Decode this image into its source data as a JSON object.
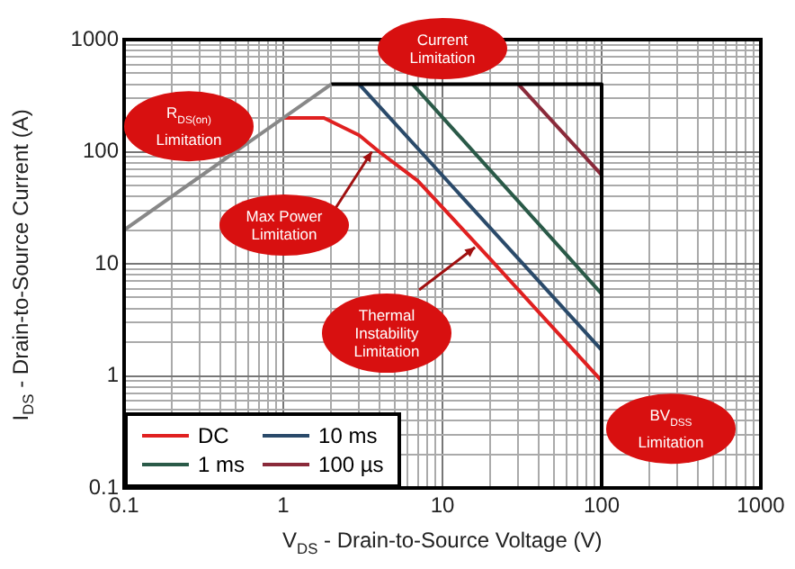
{
  "chart_data": {
    "type": "line",
    "xlabel": "V$_{DS}$ - Drain-to-Source Voltage (V)",
    "ylabel": "I$_{DS}$ - Drain-to-Source Current (A)",
    "log": "xy",
    "grid": true,
    "legend": "bottom left",
    "marker": "none",
    "line_style": "solid",
    "xlim": [
      0.1,
      1000
    ],
    "ylim": [
      0.1,
      1000
    ],
    "xticks": [
      0.1,
      {
        "value": 0.2,
        "label": null
      },
      {
        "value": 0.3,
        "label": null
      },
      {
        "value": 0.4,
        "label": null
      },
      {
        "value": 0.5,
        "label": null
      },
      {
        "value": 0.6,
        "label": null
      },
      {
        "value": 0.7,
        "label": null
      },
      {
        "value": 0.8,
        "label": null
      },
      {
        "value": 0.9,
        "label": null
      },
      1,
      {
        "value": 2,
        "label": null
      },
      {
        "value": 3,
        "label": null
      },
      {
        "value": 4,
        "label": null
      },
      {
        "value": 5,
        "label": null
      },
      {
        "value": 6,
        "label": null
      },
      {
        "value": 7,
        "label": null
      },
      {
        "value": 8,
        "label": null
      },
      {
        "value": 9,
        "label": null
      },
      10,
      {
        "value": 20,
        "label": null
      },
      {
        "value": 30,
        "label": null
      },
      {
        "value": 40,
        "label": null
      },
      {
        "value": 50,
        "label": null
      },
      {
        "value": 60,
        "label": null
      },
      {
        "value": 70,
        "label": null
      },
      {
        "value": 80,
        "label": null
      },
      {
        "value": 90,
        "label": null
      },
      100,
      {
        "value": 200,
        "label": null
      },
      {
        "value": 300,
        "label": null
      },
      {
        "value": 400,
        "label": null
      },
      {
        "value": 500,
        "label": null
      },
      {
        "value": 600,
        "label": null
      },
      {
        "value": 700,
        "label": null
      },
      {
        "value": 800,
        "label": null
      },
      {
        "value": 900,
        "label": null
      },
      1000
    ],
    "yticks": [
      0.1,
      {
        "value": 0.2,
        "label": null
      },
      {
        "value": 0.3,
        "label": null
      },
      {
        "value": 0.4,
        "label": null
      },
      {
        "value": 0.5,
        "label": null
      },
      {
        "value": 0.6,
        "label": null
      },
      {
        "value": 0.7,
        "label": null
      },
      {
        "value": 0.8,
        "label": null
      },
      {
        "value": 0.9,
        "label": null
      },
      1,
      {
        "value": 2,
        "label": null
      },
      {
        "value": 3,
        "label": null
      },
      {
        "value": 4,
        "label": null
      },
      {
        "value": 5,
        "label": null
      },
      {
        "value": 6,
        "label": null
      },
      {
        "value": 7,
        "label": null
      },
      {
        "value": 8,
        "label": null
      },
      {
        "value": 9,
        "label": null
      },
      10,
      {
        "value": 20,
        "label": null
      },
      {
        "value": 30,
        "label": null
      },
      {
        "value": 40,
        "label": null
      },
      {
        "value": 50,
        "label": null
      },
      {
        "value": 60,
        "label": null
      },
      {
        "value": 70,
        "label": null
      },
      {
        "value": 80,
        "label": null
      },
      {
        "value": 90,
        "label": null
      },
      100,
      {
        "value": 200,
        "label": null
      },
      {
        "value": 300,
        "label": null
      },
      {
        "value": 400,
        "label": null
      },
      {
        "value": 500,
        "label": null
      },
      {
        "value": 600,
        "label": null
      },
      {
        "value": 700,
        "label": null
      },
      {
        "value": 800,
        "label": null
      },
      {
        "value": 900,
        "label": null
      },
      1000
    ],
    "series": [
      {
        "color": "#888888",
        "x": [
          0.1,
          2
        ],
        "values": [
          20,
          400
        ]
      },
      {
        "color": "#000000",
        "x": [
          2,
          100,
          100
        ],
        "values": [
          400,
          400,
          0.1
        ]
      },
      {
        "name": "DC",
        "color": "#e02020",
        "x": [
          1,
          1.8,
          3,
          4,
          7,
          20,
          100
        ],
        "values": [
          200,
          200,
          140,
          100,
          55,
          11,
          0.9
        ]
      },
      {
        "name": "10 ms",
        "color": "#2a4a6a",
        "x": [
          3,
          100
        ],
        "values": [
          400,
          1.7
        ]
      },
      {
        "name": "1 ms",
        "color": "#2a5a48",
        "x": [
          6.5,
          100
        ],
        "values": [
          400,
          5.4
        ]
      },
      {
        "name": "100 µs",
        "color": "#8a2a3a",
        "x": [
          30,
          100
        ],
        "values": [
          400,
          62
        ]
      }
    ],
    "annotations": [
      "R$_{DS(on)}$ Limitation",
      "Current Limitation",
      {
        "text": "Max Power Limitation",
        "x": 3.6,
        "y": 100
      },
      {
        "text": "Thermal Instability Limitation",
        "x": 16,
        "y": 14
      },
      "BV$_{DSS}$ Limitation"
    ]
  }
}
